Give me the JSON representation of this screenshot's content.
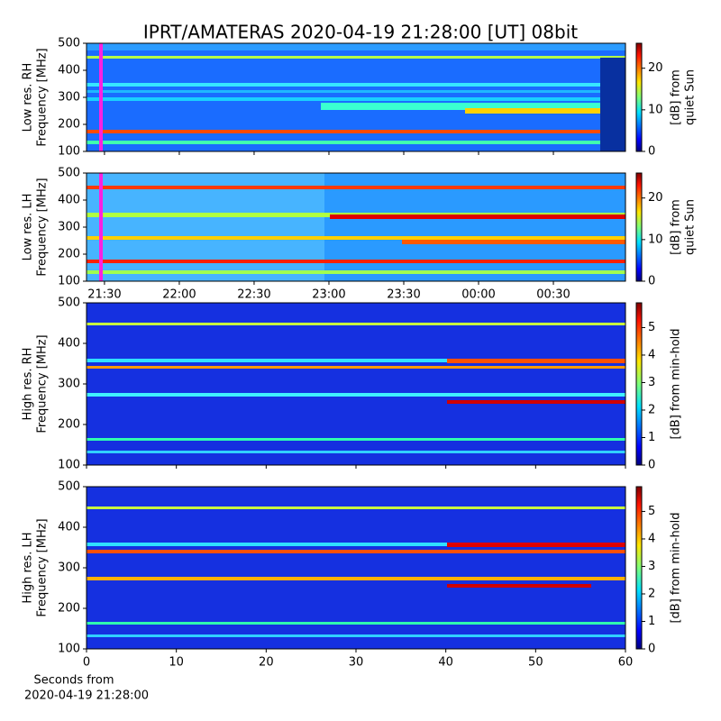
{
  "title": "IPRT/AMATERAS 2020-04-19 21:28:00 [UT]   08bit",
  "chart_data": [
    {
      "type": "heatmap",
      "ylabel": [
        "Low res. RH",
        "Frequency [MHz]"
      ],
      "ylim": [
        100,
        500
      ],
      "yticks": [
        100,
        200,
        300,
        400,
        500
      ],
      "xlim": [
        1282.8,
        1498.9
      ],
      "xticks": [
        1290,
        1320,
        1350,
        1380,
        1410,
        1440,
        1470
      ],
      "xticklabels": false,
      "colormap": "jet",
      "colorbar_label": [
        "[dB] from",
        "quiet Sun"
      ],
      "clim": [
        0,
        26
      ],
      "cticks": [
        0,
        10,
        20
      ]
    },
    {
      "type": "heatmap",
      "ylabel": [
        "Low res. LH",
        "Frequency [MHz]"
      ],
      "ylim": [
        100,
        500
      ],
      "yticks": [
        100,
        200,
        300,
        400,
        500
      ],
      "xlim": [
        1282.8,
        1498.9
      ],
      "xticks": [
        {
          "value": 1290,
          "label": "21:30"
        },
        {
          "value": 1320,
          "label": "22:00"
        },
        {
          "value": 1350,
          "label": "22:30"
        },
        {
          "value": 1380,
          "label": "23:00"
        },
        {
          "value": 1410,
          "label": "23:30"
        },
        {
          "value": 1440,
          "label": "00:00"
        },
        {
          "value": 1470,
          "label": "00:30"
        }
      ],
      "xticklabels": true,
      "colormap": "jet",
      "colorbar_label": [
        "[dB] from",
        "quiet Sun"
      ],
      "clim": [
        0,
        26
      ],
      "cticks": [
        0,
        10,
        20
      ]
    },
    {
      "type": "heatmap",
      "ylabel": [
        "High res. RH",
        "Frequency [MHz]"
      ],
      "ylim": [
        100,
        500
      ],
      "yticks": [
        100,
        200,
        300,
        400,
        500
      ],
      "xlim": [
        0,
        60
      ],
      "xticks": [
        0,
        10,
        20,
        30,
        40,
        50,
        60
      ],
      "xticklabels": false,
      "colormap": "jet",
      "colorbar_label": [
        "[dB] from min-hold"
      ],
      "clim": [
        0,
        5.9
      ],
      "cticks": [
        0,
        1,
        2,
        3,
        4,
        5
      ]
    },
    {
      "type": "heatmap",
      "ylabel": [
        "High res. LH",
        "Frequency [MHz]"
      ],
      "ylim": [
        100,
        500
      ],
      "yticks": [
        100,
        200,
        300,
        400,
        500
      ],
      "xlim": [
        0,
        60
      ],
      "xticks": [
        0,
        10,
        20,
        30,
        40,
        50,
        60
      ],
      "xticklabels": true,
      "xlabel": [
        "Seconds from",
        "2020-04-19 21:28:00"
      ],
      "colormap": "jet",
      "colorbar_label": [
        "[dB] from min-hold"
      ],
      "clim": [
        0,
        5.9
      ],
      "cticks": [
        0,
        1,
        2,
        3,
        4,
        5
      ]
    }
  ]
}
